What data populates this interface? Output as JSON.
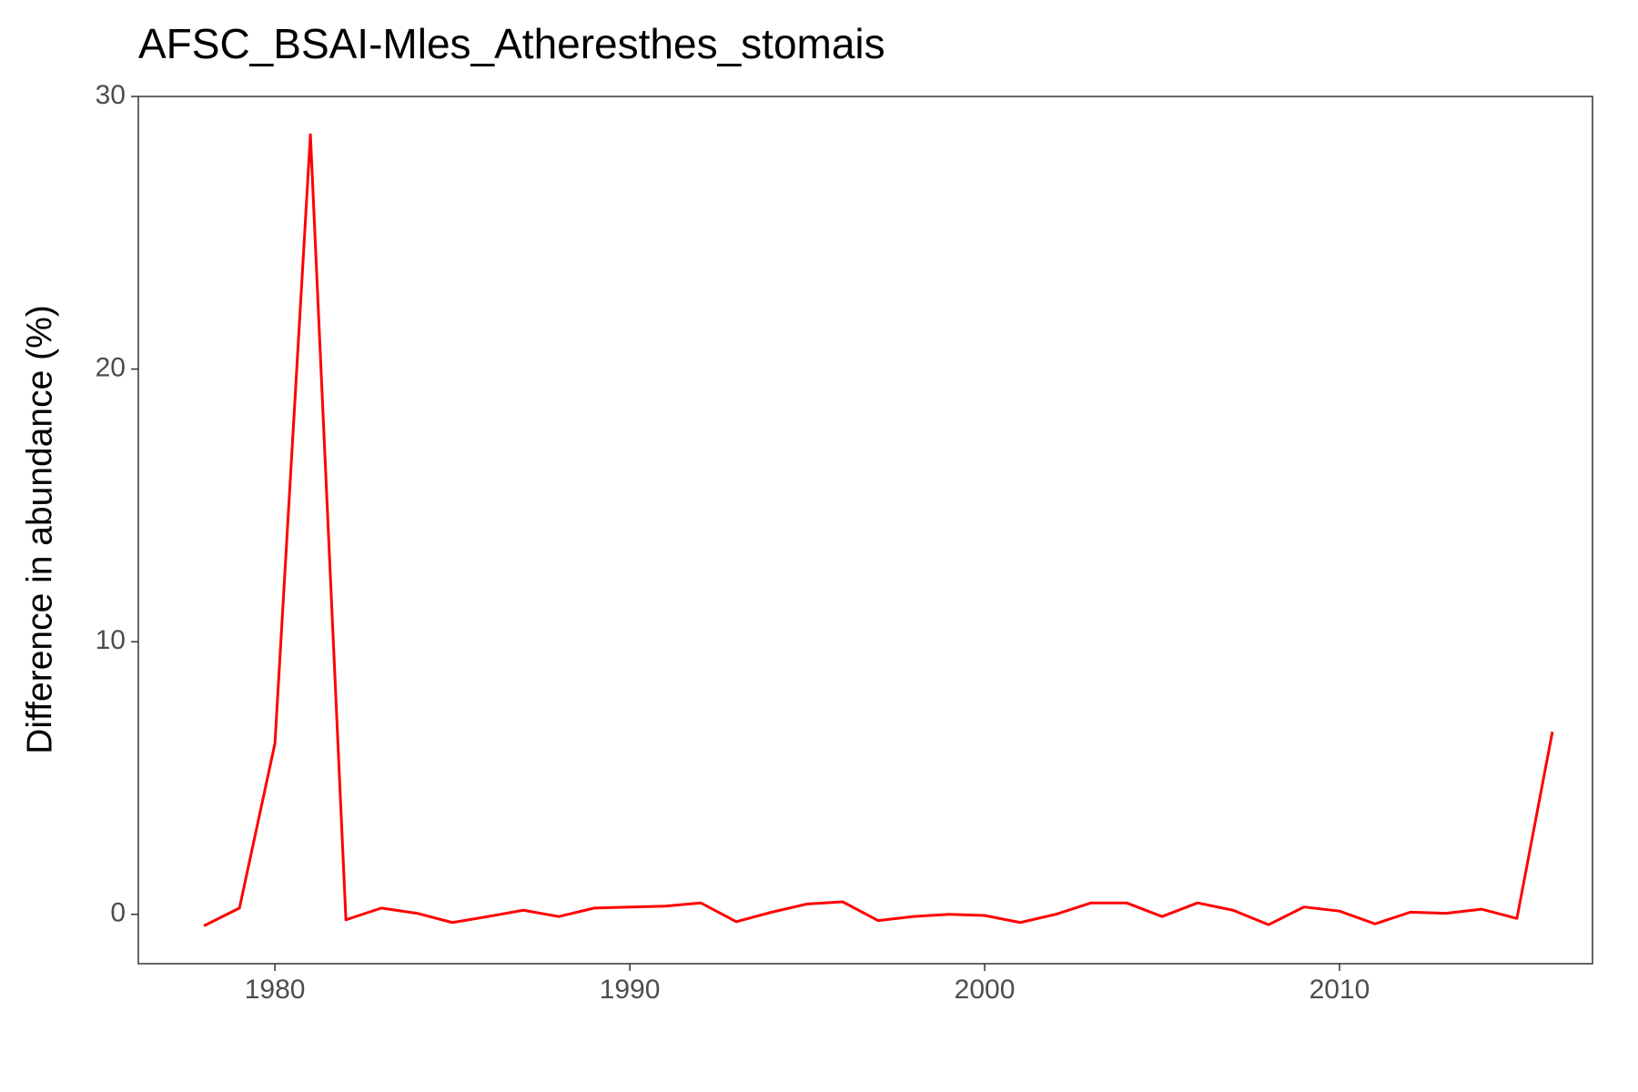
{
  "chart_data": {
    "type": "line",
    "title": "AFSC_BSAI-Mles_Atheresthes_stomais",
    "y_label": "Difference in abundance (%)",
    "x": [
      1978,
      1979,
      1980,
      1981,
      1982,
      1983,
      1984,
      1985,
      1986,
      1987,
      1988,
      1989,
      1990,
      1991,
      1992,
      1993,
      1994,
      1995,
      1996,
      1997,
      1998,
      1999,
      2000,
      2001,
      2002,
      2003,
      2004,
      2005,
      2006,
      2007,
      2008,
      2009,
      2010,
      2011,
      2012,
      2013,
      2014,
      2015,
      2016
    ],
    "series": [
      {
        "color": "#ff0000",
        "values": [
          -0.42,
          0.23,
          6.27,
          28.6,
          -0.2,
          0.23,
          0.04,
          -0.3,
          -0.08,
          0.15,
          -0.08,
          0.23,
          0.27,
          0.3,
          0.42,
          -0.27,
          0.08,
          0.38,
          0.46,
          -0.23,
          -0.08,
          0,
          -0.04,
          -0.3,
          0,
          0.42,
          0.42,
          -0.08,
          0.42,
          0.15,
          -0.38,
          0.27,
          0.12,
          -0.35,
          0.08,
          0.04,
          0.19,
          -0.15,
          6.7
        ]
      }
    ],
    "xlim": [
      1976.15,
      2017.13
    ],
    "ylim": [
      -1.81,
      30
    ],
    "xticks": [
      1980,
      1990,
      2000,
      2010
    ],
    "yticks": [
      0,
      10,
      20,
      30
    ],
    "grid": false
  }
}
